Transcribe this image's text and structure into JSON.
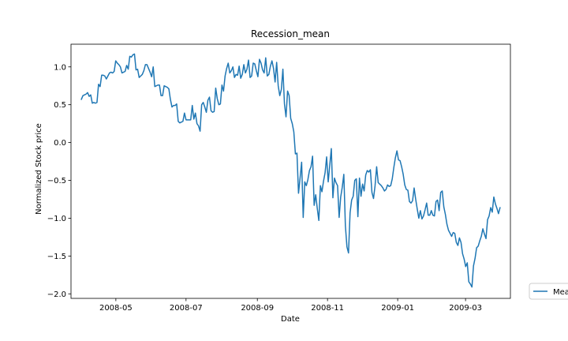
{
  "chart_data": {
    "type": "line",
    "title": "Recession_mean",
    "xlabel": "Date",
    "ylabel": "Normalized Stock price",
    "x_start": "2008-04-01",
    "x_end": "2009-03-31",
    "ylim": [
      -2.06,
      1.3
    ],
    "xlim": [
      "2008-03-23",
      "2009-04-09"
    ],
    "xticks": [
      "2008-05",
      "2008-07",
      "2008-09",
      "2008-11",
      "2009-01",
      "2009-03"
    ],
    "yticks": [
      1.0,
      0.5,
      0.0,
      -0.5,
      -1.0,
      -1.5,
      -2.0
    ],
    "ytick_labels": [
      "1.0",
      "0.5",
      "0.0",
      "−0.5",
      "−1.0",
      "−1.5",
      "−2.0"
    ],
    "grid": false,
    "legend_position": "outside-right-bottom",
    "series": [
      {
        "name": "Mean",
        "color": "#1f77b4",
        "values": [
          0.57,
          0.62,
          0.63,
          0.64,
          0.66,
          0.61,
          0.63,
          0.52,
          0.53,
          0.52,
          0.53,
          0.77,
          0.74,
          0.89,
          0.89,
          0.88,
          0.84,
          0.88,
          0.92,
          0.93,
          0.92,
          0.94,
          1.08,
          1.05,
          1.03,
          1.0,
          0.92,
          0.93,
          0.94,
          1.02,
          0.97,
          1.14,
          1.13,
          1.16,
          1.17,
          0.96,
          0.97,
          0.86,
          0.88,
          0.9,
          0.95,
          1.03,
          1.03,
          0.98,
          0.93,
          0.87,
          1.0,
          0.74,
          0.75,
          0.76,
          0.76,
          0.62,
          0.62,
          0.75,
          0.74,
          0.73,
          0.71,
          0.57,
          0.47,
          0.49,
          0.49,
          0.51,
          0.28,
          0.26,
          0.27,
          0.28,
          0.39,
          0.3,
          0.3,
          0.3,
          0.3,
          0.49,
          0.31,
          0.39,
          0.25,
          0.22,
          0.15,
          0.5,
          0.53,
          0.47,
          0.4,
          0.56,
          0.6,
          0.42,
          0.4,
          0.41,
          0.72,
          0.58,
          0.5,
          0.51,
          0.76,
          0.68,
          0.88,
          0.98,
          1.05,
          0.92,
          0.95,
          1.0,
          0.86,
          0.9,
          0.89,
          1.01,
          0.85,
          0.9,
          1.03,
          0.92,
          0.97,
          1.09,
          0.86,
          0.88,
          1.05,
          1.04,
          0.95,
          0.87,
          1.1,
          1.05,
          0.96,
          0.92,
          1.12,
          0.88,
          0.9,
          1.01,
          1.08,
          0.98,
          0.8,
          1.06,
          0.75,
          0.62,
          0.7,
          0.97,
          0.51,
          0.34,
          0.68,
          0.62,
          0.32,
          0.25,
          0.14,
          -0.15,
          -0.14,
          -0.67,
          -0.47,
          -0.26,
          -0.99,
          -0.52,
          -0.57,
          -0.49,
          -0.37,
          -0.32,
          -0.18,
          -0.83,
          -0.69,
          -0.87,
          -1.03,
          -0.57,
          -0.65,
          -0.51,
          -0.4,
          -0.19,
          -0.52,
          -0.3,
          -0.08,
          -0.73,
          -0.47,
          -0.53,
          -0.57,
          -0.99,
          -0.72,
          -0.59,
          -0.42,
          -1.1,
          -1.38,
          -1.46,
          -0.93,
          -0.76,
          -0.71,
          -0.5,
          -0.48,
          -0.98,
          -0.47,
          -0.71,
          -0.55,
          -0.64,
          -0.43,
          -0.37,
          -0.39,
          -0.36,
          -0.66,
          -0.74,
          -0.57,
          -0.32,
          -0.53,
          -0.55,
          -0.57,
          -0.6,
          -0.64,
          -0.62,
          -0.56,
          -0.58,
          -0.57,
          -0.48,
          -0.33,
          -0.2,
          -0.11,
          -0.23,
          -0.24,
          -0.32,
          -0.42,
          -0.56,
          -0.62,
          -0.63,
          -0.78,
          -0.8,
          -0.77,
          -0.6,
          -0.75,
          -0.88,
          -1.0,
          -0.9,
          -1.01,
          -0.97,
          -0.89,
          -0.8,
          -0.96,
          -0.96,
          -0.9,
          -0.96,
          -0.97,
          -0.78,
          -0.76,
          -0.9,
          -0.66,
          -0.64,
          -0.85,
          -0.95,
          -1.08,
          -1.16,
          -1.2,
          -1.24,
          -1.19,
          -1.2,
          -1.32,
          -1.36,
          -1.26,
          -1.32,
          -1.47,
          -1.54,
          -1.64,
          -1.59,
          -1.84,
          -1.87,
          -1.91,
          -1.63,
          -1.53,
          -1.39,
          -1.37,
          -1.3,
          -1.24,
          -1.14,
          -1.21,
          -1.27,
          -1.02,
          -0.97,
          -0.86,
          -0.92,
          -0.72,
          -0.81,
          -0.87,
          -0.94,
          -0.86
        ]
      }
    ]
  }
}
